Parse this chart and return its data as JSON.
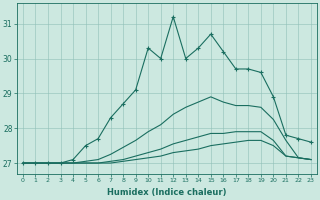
{
  "xlabel": "Humidex (Indice chaleur)",
  "ylabel": "",
  "background_color": "#cce8e0",
  "line_color": "#1a6e60",
  "xlim": [
    -0.5,
    23.5
  ],
  "ylim": [
    26.7,
    31.6
  ],
  "yticks": [
    27,
    28,
    29,
    30,
    31
  ],
  "xticks": [
    0,
    1,
    2,
    3,
    4,
    5,
    6,
    7,
    8,
    9,
    10,
    11,
    12,
    13,
    14,
    15,
    16,
    17,
    18,
    19,
    20,
    21,
    22,
    23
  ],
  "series": [
    [
      27.0,
      27.0,
      27.0,
      27.0,
      27.1,
      27.5,
      27.7,
      28.3,
      28.7,
      29.1,
      30.3,
      30.0,
      31.2,
      30.0,
      30.3,
      30.7,
      30.2,
      29.7,
      29.7,
      29.6,
      28.9,
      27.8,
      27.7,
      27.6
    ],
    [
      27.0,
      27.0,
      27.0,
      27.0,
      27.0,
      27.0,
      27.0,
      27.0,
      27.05,
      27.1,
      27.15,
      27.2,
      27.3,
      27.35,
      27.4,
      27.5,
      27.55,
      27.6,
      27.65,
      27.65,
      27.5,
      27.2,
      27.15,
      27.1
    ],
    [
      27.0,
      27.0,
      27.0,
      27.0,
      27.0,
      27.0,
      27.0,
      27.05,
      27.1,
      27.2,
      27.3,
      27.4,
      27.55,
      27.65,
      27.75,
      27.85,
      27.85,
      27.9,
      27.9,
      27.9,
      27.65,
      27.2,
      27.15,
      27.1
    ],
    [
      27.0,
      27.0,
      27.0,
      27.0,
      27.0,
      27.05,
      27.1,
      27.25,
      27.45,
      27.65,
      27.9,
      28.1,
      28.4,
      28.6,
      28.75,
      28.9,
      28.75,
      28.65,
      28.65,
      28.6,
      28.25,
      27.65,
      27.15,
      27.1
    ]
  ]
}
